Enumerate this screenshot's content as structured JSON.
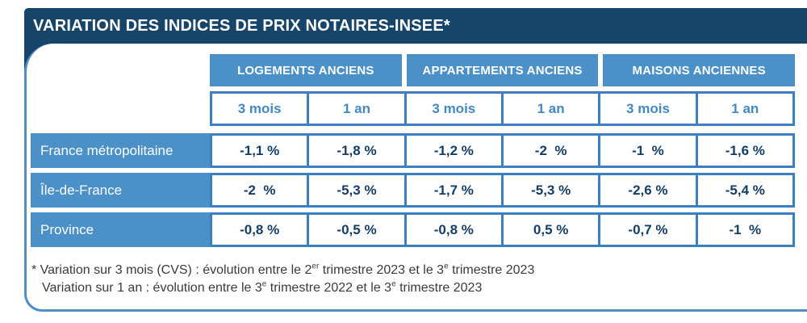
{
  "title": "VARIATION DES INDICES DE PRIX NOTAIRES-INSEE*",
  "colors": {
    "navy": "#164569",
    "medium_blue": "#4b90c7",
    "cell_border_blue": "#3c7fc2",
    "value_text_navy": "#143e66",
    "subheader_text_blue": "#4389c5",
    "panel_border_blue": "#4e8fc7",
    "footnote_gray": "#3b3b3b"
  },
  "table": {
    "groups": [
      "LOGEMENTS ANCIENS",
      "APPARTEMENTS ANCIENS",
      "MAISONS ANCIENNES"
    ],
    "subheaders": [
      "3 mois",
      "1 an",
      "3 mois",
      "1 an",
      "3 mois",
      "1 an"
    ],
    "rows": [
      {
        "label": "France métropolitaine",
        "values": [
          "-1,1 %",
          "-1,8 %",
          "-1,2 %",
          "-2  %",
          "-1  %",
          "-1,6 %"
        ]
      },
      {
        "label": "Île-de-France",
        "values": [
          "-2  %",
          "-5,3 %",
          "-1,7 %",
          "-5,3 %",
          "-2,6 %",
          "-5,4 %"
        ]
      },
      {
        "label": "Province",
        "values": [
          "-0,8 %",
          "-0,5 %",
          "-0,8 %",
          "0,5 %",
          "-0,7 %",
          "-1  %"
        ]
      }
    ]
  },
  "footnote": {
    "line1": {
      "p0": "* Variation sur 3 mois (CVS) : évolution entre le 2",
      "s0": "er",
      "p1": " trimestre 2023 et le 3",
      "s1": "e",
      "p2": " trimestre 2023"
    },
    "line2": {
      "p0": "Variation sur 1 an : évolution entre le 3",
      "s0": "e",
      "p1": " trimestre 2022 et le 3",
      "s1": "e",
      "p2": " trimestre 2023"
    }
  }
}
